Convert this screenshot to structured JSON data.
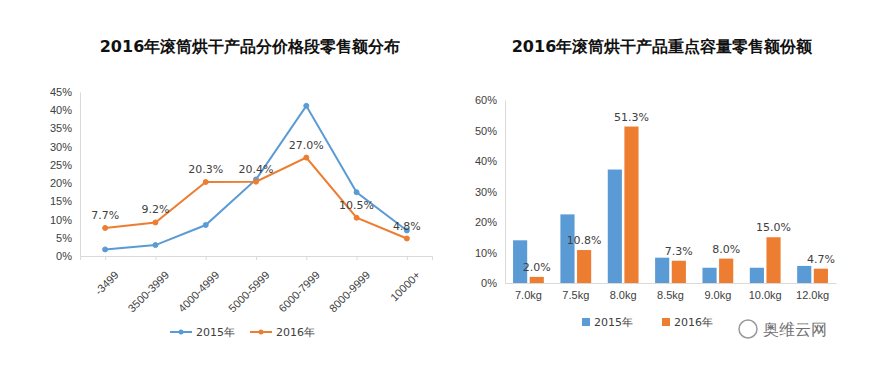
{
  "chart_data": [
    {
      "type": "line",
      "title": "2016年滚筒烘干产品分价格段零售额分布",
      "categories": [
        "-3499",
        "3500-3999",
        "4000-4999",
        "5000-5999",
        "6000-7999",
        "8000-9999",
        "10000+"
      ],
      "series": [
        {
          "name": "2015年",
          "color": "#5b9bd5",
          "marker": "circle",
          "values": [
            1.8,
            3.0,
            8.5,
            21.0,
            41.2,
            17.5,
            7.0
          ]
        },
        {
          "name": "2016年",
          "color": "#ed7d31",
          "marker": "circle",
          "values": [
            7.7,
            9.2,
            20.3,
            20.4,
            27.0,
            10.5,
            4.8
          ],
          "value_labels": [
            "7.7%",
            "9.2%",
            "20.3%",
            "20.4%",
            "27.0%",
            "10.5%",
            "4.8%"
          ]
        }
      ],
      "ylim": [
        0,
        45
      ],
      "yticks": [
        {
          "value": 0,
          "label": "0%"
        },
        {
          "value": 5,
          "label": "5%"
        },
        {
          "value": 10,
          "label": "10%"
        },
        {
          "value": 15,
          "label": "15%"
        },
        {
          "value": 20,
          "label": "20%"
        },
        {
          "value": 25,
          "label": "25%"
        },
        {
          "value": 30,
          "label": "30%"
        },
        {
          "value": 35,
          "label": "35%"
        },
        {
          "value": 40,
          "label": "40%"
        },
        {
          "value": 45,
          "label": "45%"
        }
      ],
      "grid": false,
      "legend": "bottom",
      "data_labels": true
    },
    {
      "type": "bar",
      "title": "2016年滚筒烘干产品重点容量零售额份额",
      "categories": [
        "7.0kg",
        "7.5kg",
        "8.0kg",
        "8.5kg",
        "9.0kg",
        "10.0kg",
        "12.0kg"
      ],
      "series": [
        {
          "name": "2015年",
          "color": "#5b9bd5",
          "values": [
            14.0,
            22.5,
            37.2,
            8.3,
            5.0,
            5.0,
            5.6
          ]
        },
        {
          "name": "2016年",
          "color": "#ed7d31",
          "values": [
            2.0,
            10.8,
            51.3,
            7.3,
            8.0,
            15.0,
            4.7
          ],
          "value_labels": [
            "2.0%",
            "10.8%",
            "51.3%",
            "7.3%",
            "8.0%",
            "15.0%",
            "4.7%"
          ]
        }
      ],
      "ylim": [
        0,
        60
      ],
      "yticks": [
        {
          "value": 0,
          "label": "0%"
        },
        {
          "value": 10,
          "label": "10%"
        },
        {
          "value": 20,
          "label": "20%"
        },
        {
          "value": 30,
          "label": "30%"
        },
        {
          "value": 40,
          "label": "40%"
        },
        {
          "value": 50,
          "label": "50%"
        },
        {
          "value": 60,
          "label": "60%"
        }
      ],
      "grid": false,
      "legend": "bottom",
      "data_labels": true
    }
  ],
  "watermark": "奥维云网"
}
